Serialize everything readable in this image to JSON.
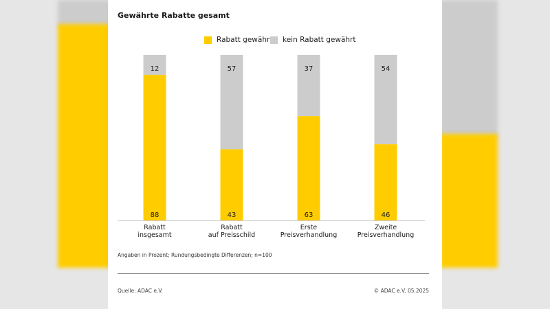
{
  "chart_data": {
    "type": "bar",
    "stacked": true,
    "title": "Gewährte Rabatte gesamt",
    "categories": [
      [
        "Rabatt",
        "insgesamt"
      ],
      [
        "Rabatt",
        "auf Preisschild"
      ],
      [
        "Erste",
        "Preisverhandlung"
      ],
      [
        "Zweite",
        "Preisverhandlung"
      ]
    ],
    "series": [
      {
        "name": "Rabatt gewährt",
        "color": "#ffcc00",
        "values": [
          88,
          43,
          63,
          46
        ]
      },
      {
        "name": "kein Rabatt gewährt",
        "color": "#cccccc",
        "values": [
          12,
          57,
          37,
          54
        ]
      }
    ],
    "ylim": [
      0,
      100
    ],
    "grid": false,
    "legend": "top-center"
  },
  "notes": {
    "footnote": "Angaben in Prozent; Rundungsbedingte Differenzen; n=100",
    "source": "Quelle: ADAC e.V.",
    "copyright": "© ADAC e.V. 05.2025"
  }
}
